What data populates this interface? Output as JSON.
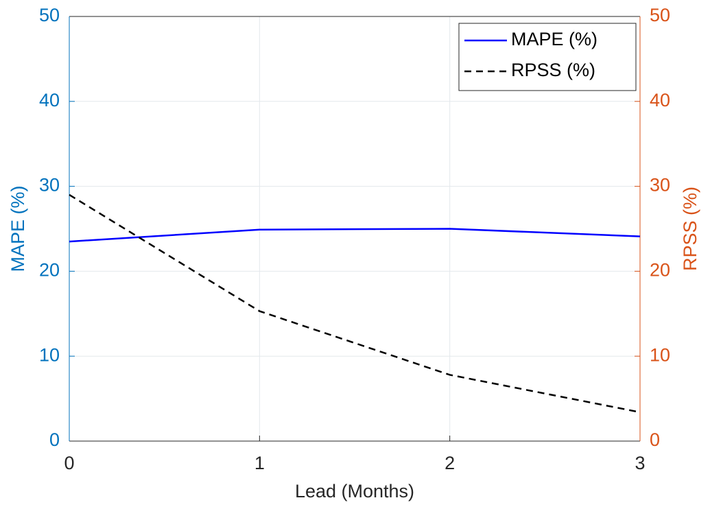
{
  "chart_data": {
    "type": "line",
    "x": [
      0,
      1,
      2,
      3
    ],
    "xlim": [
      0,
      3
    ],
    "xticks": [
      0,
      1,
      2,
      3
    ],
    "ylim": [
      0,
      50
    ],
    "yticks": [
      0,
      10,
      20,
      30,
      40,
      50
    ],
    "y2lim": [
      0,
      50
    ],
    "y2ticks": [
      0,
      10,
      20,
      30,
      40,
      50
    ],
    "xlabel": "Lead (Months)",
    "ylabel": "MAPE (%)",
    "y2label": "RPSS (%)",
    "y_axis_color": "#0072bd",
    "y2_axis_color": "#d95319",
    "grid": true,
    "legend": "upper-right",
    "series": [
      {
        "name": "MAPE (%)",
        "color": "#0000ff",
        "dash": "solid",
        "values": [
          23.5,
          24.9,
          25.0,
          24.1
        ]
      },
      {
        "name": "RPSS (%)",
        "color": "#000000",
        "dash": "dashed",
        "axis": "y2",
        "values": [
          29.0,
          15.3,
          7.8,
          3.4
        ]
      }
    ]
  }
}
